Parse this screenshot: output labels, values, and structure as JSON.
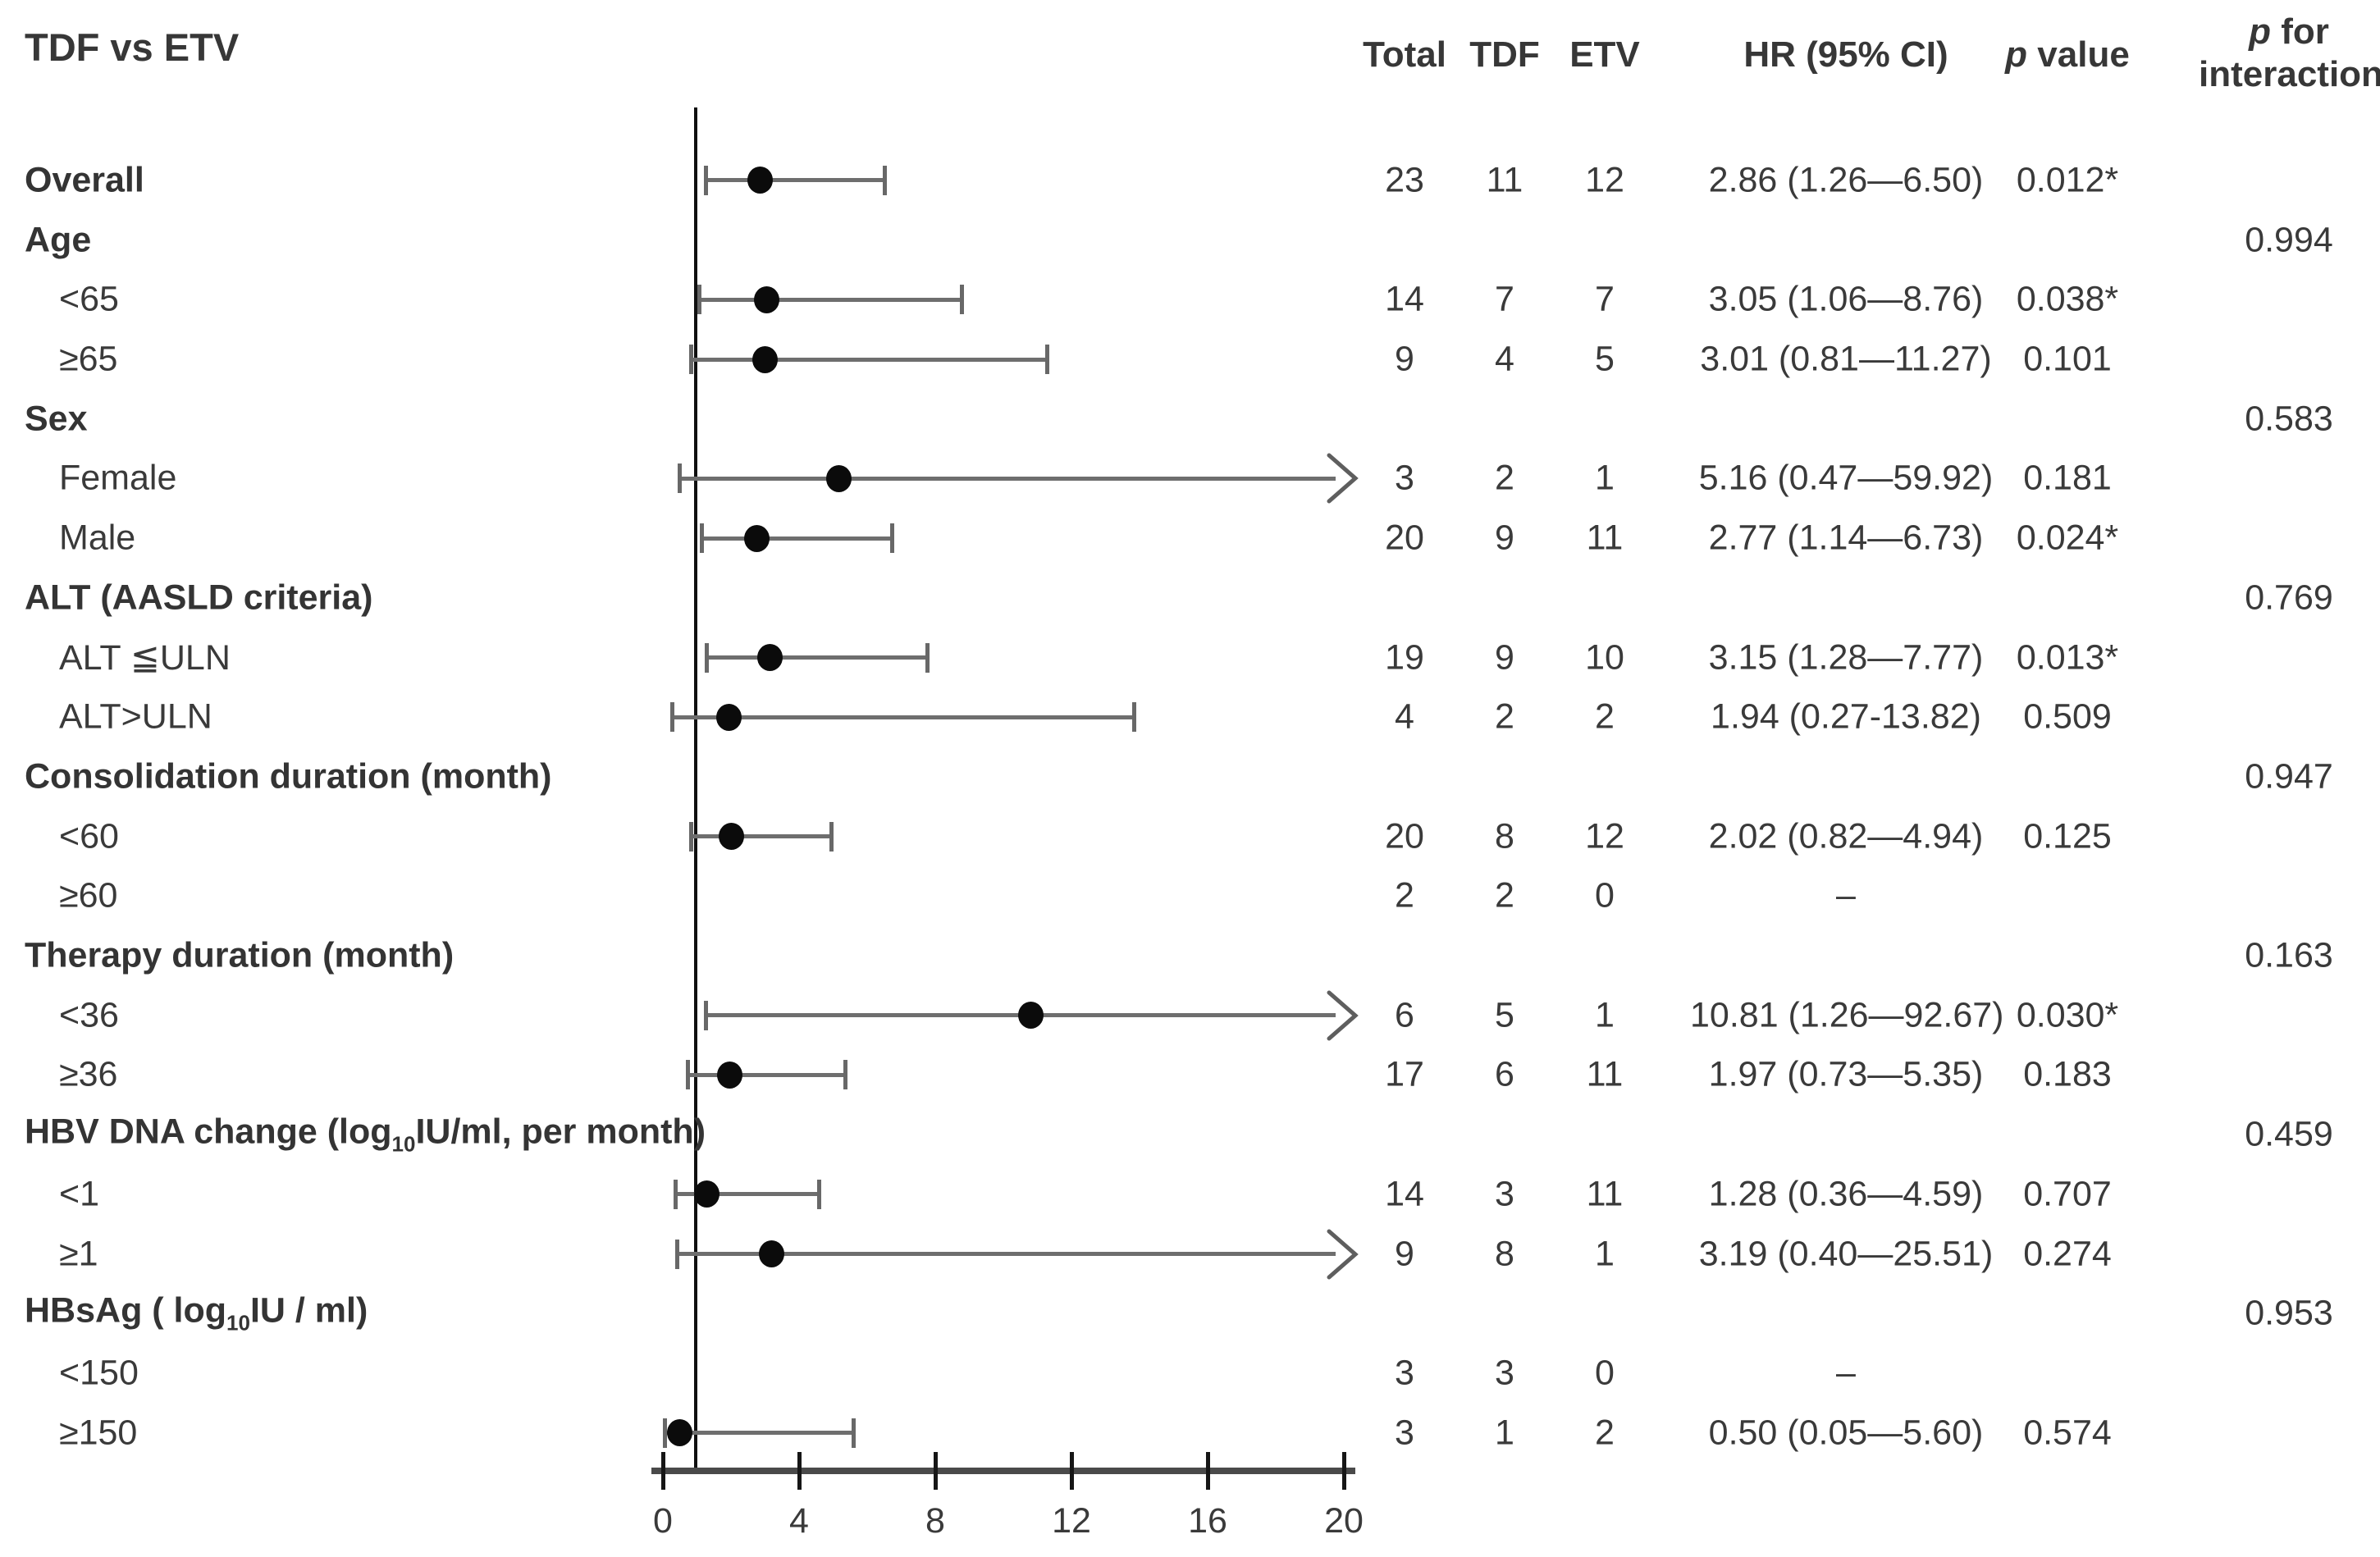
{
  "title": "TDF vs ETV",
  "columns": {
    "total": "Total",
    "tdf": "TDF",
    "etv": "ETV",
    "hr": "HR (95% CI)",
    "p_italic": "p",
    "p_rest": " value",
    "pint_italic": "p",
    "pint_rest": " for",
    "pint_line2": "interaction"
  },
  "colors": {
    "text": "#3a3a3a",
    "reference_line": "#101010",
    "ci_line": "#6e6e6e",
    "point": "#0b0b0b",
    "axis": "#4a4a4a"
  },
  "chart_data": {
    "type": "forest",
    "title": "TDF vs ETV",
    "x_axis": {
      "ticks": [
        0,
        4,
        8,
        12,
        16,
        20
      ],
      "min": 0,
      "max": 20,
      "reference_line": 1,
      "grid": false
    },
    "columns": [
      "Total",
      "TDF",
      "ETV",
      "HR (95% CI)",
      "p value",
      "p for interaction"
    ],
    "rows": [
      {
        "label": "Overall",
        "bold": true,
        "indent": false,
        "total": "23",
        "tdf": "11",
        "etv": "12",
        "hr_ci": "2.86 (1.26—6.50)",
        "p": "0.012*",
        "p_interaction": "",
        "plot": {
          "hr": 2.86,
          "lo": 1.26,
          "hi": 6.5,
          "arrow": false
        }
      },
      {
        "label": "Age",
        "bold": true,
        "indent": false,
        "total": "",
        "tdf": "",
        "etv": "",
        "hr_ci": "",
        "p": "",
        "p_interaction": "0.994",
        "plot": null
      },
      {
        "label": "<65",
        "bold": false,
        "indent": true,
        "total": "14",
        "tdf": "7",
        "etv": "7",
        "hr_ci": "3.05 (1.06—8.76)",
        "p": "0.038*",
        "p_interaction": "",
        "plot": {
          "hr": 3.05,
          "lo": 1.06,
          "hi": 8.76,
          "arrow": false
        }
      },
      {
        "label": "≥65",
        "bold": false,
        "indent": true,
        "total": "9",
        "tdf": "4",
        "etv": "5",
        "hr_ci": "3.01 (0.81—11.27)",
        "p": "0.101",
        "p_interaction": "",
        "plot": {
          "hr": 3.01,
          "lo": 0.81,
          "hi": 11.27,
          "arrow": false
        }
      },
      {
        "label": "Sex",
        "bold": true,
        "indent": false,
        "total": "",
        "tdf": "",
        "etv": "",
        "hr_ci": "",
        "p": "",
        "p_interaction": "0.583",
        "plot": null
      },
      {
        "label": "Female",
        "bold": false,
        "indent": true,
        "total": "3",
        "tdf": "2",
        "etv": "1",
        "hr_ci": "5.16 (0.47—59.92)",
        "p": "0.181",
        "p_interaction": "",
        "plot": {
          "hr": 5.16,
          "lo": 0.47,
          "hi": 59.92,
          "arrow": true
        }
      },
      {
        "label": "Male",
        "bold": false,
        "indent": true,
        "total": "20",
        "tdf": "9",
        "etv": "11",
        "hr_ci": "2.77 (1.14—6.73)",
        "p": "0.024*",
        "p_interaction": "",
        "plot": {
          "hr": 2.77,
          "lo": 1.14,
          "hi": 6.73,
          "arrow": false
        }
      },
      {
        "label": "ALT (AASLD criteria)",
        "bold": true,
        "indent": false,
        "total": "",
        "tdf": "",
        "etv": "",
        "hr_ci": "",
        "p": "",
        "p_interaction": "0.769",
        "plot": null
      },
      {
        "label": "ALT ≦ULN",
        "bold": false,
        "indent": true,
        "total": "19",
        "tdf": "9",
        "etv": "10",
        "hr_ci": "3.15 (1.28—7.77)",
        "p": "0.013*",
        "p_interaction": "",
        "plot": {
          "hr": 3.15,
          "lo": 1.28,
          "hi": 7.77,
          "arrow": false
        }
      },
      {
        "label": "ALT>ULN",
        "bold": false,
        "indent": true,
        "total": "4",
        "tdf": "2",
        "etv": "2",
        "hr_ci": "1.94 (0.27-13.82)",
        "p": "0.509",
        "p_interaction": "",
        "plot": {
          "hr": 1.94,
          "lo": 0.27,
          "hi": 13.82,
          "arrow": false
        }
      },
      {
        "label": "Consolidation duration (month)",
        "bold": true,
        "indent": false,
        "total": "",
        "tdf": "",
        "etv": "",
        "hr_ci": "",
        "p": "",
        "p_interaction": "0.947",
        "plot": null
      },
      {
        "label": "<60",
        "bold": false,
        "indent": true,
        "total": "20",
        "tdf": "8",
        "etv": "12",
        "hr_ci": "2.02 (0.82—4.94)",
        "p": "0.125",
        "p_interaction": "",
        "plot": {
          "hr": 2.02,
          "lo": 0.82,
          "hi": 4.94,
          "arrow": false
        }
      },
      {
        "label": "≥60",
        "bold": false,
        "indent": true,
        "total": "2",
        "tdf": "2",
        "etv": "0",
        "hr_ci": "–",
        "p": "",
        "p_interaction": "",
        "plot": null
      },
      {
        "label": "Therapy duration (month)",
        "bold": true,
        "indent": false,
        "total": "",
        "tdf": "",
        "etv": "",
        "hr_ci": "",
        "p": "",
        "p_interaction": "0.163",
        "plot": null
      },
      {
        "label": "<36",
        "bold": false,
        "indent": true,
        "total": "6",
        "tdf": "5",
        "etv": "1",
        "hr_ci": "10.81 (1.26—92.67)",
        "p": "0.030*",
        "p_interaction": "",
        "plot": {
          "hr": 10.81,
          "lo": 1.26,
          "hi": 92.67,
          "arrow": true
        }
      },
      {
        "label": "≥36",
        "bold": false,
        "indent": true,
        "total": "17",
        "tdf": "6",
        "etv": "11",
        "hr_ci": "1.97 (0.73—5.35)",
        "p": "0.183",
        "p_interaction": "",
        "plot": {
          "hr": 1.97,
          "lo": 0.73,
          "hi": 5.35,
          "arrow": false
        }
      },
      {
        "label_parts": [
          "HBV DNA change  (log",
          "10",
          "IU/ml, per month)"
        ],
        "bold": true,
        "indent": false,
        "total": "",
        "tdf": "",
        "etv": "",
        "hr_ci": "",
        "p": "",
        "p_interaction": "0.459",
        "plot": null
      },
      {
        "label": "<1",
        "bold": false,
        "indent": true,
        "total": "14",
        "tdf": "3",
        "etv": "11",
        "hr_ci": "1.28 (0.36—4.59)",
        "p": "0.707",
        "p_interaction": "",
        "plot": {
          "hr": 1.28,
          "lo": 0.36,
          "hi": 4.59,
          "arrow": false
        }
      },
      {
        "label": "≥1",
        "bold": false,
        "indent": true,
        "total": "9",
        "tdf": "8",
        "etv": "1",
        "hr_ci": "3.19 (0.40—25.51)",
        "p": "0.274",
        "p_interaction": "",
        "plot": {
          "hr": 3.19,
          "lo": 0.4,
          "hi": 25.51,
          "arrow": true
        }
      },
      {
        "label_parts": [
          "HBsAg ( log",
          "10",
          "IU / ml)"
        ],
        "bold": true,
        "indent": false,
        "total": "",
        "tdf": "",
        "etv": "",
        "hr_ci": "",
        "p": "",
        "p_interaction": "0.953",
        "plot": null
      },
      {
        "label": "<150",
        "bold": false,
        "indent": true,
        "total": "3",
        "tdf": "3",
        "etv": "0",
        "hr_ci": "–",
        "p": "",
        "p_interaction": "",
        "plot": null
      },
      {
        "label": "≥150",
        "bold": false,
        "indent": true,
        "total": "3",
        "tdf": "1",
        "etv": "2",
        "hr_ci": "0.50 (0.05—5.60)",
        "p": "0.574",
        "p_interaction": "",
        "plot": {
          "hr": 0.5,
          "lo": 0.05,
          "hi": 5.6,
          "arrow": false
        }
      }
    ]
  }
}
